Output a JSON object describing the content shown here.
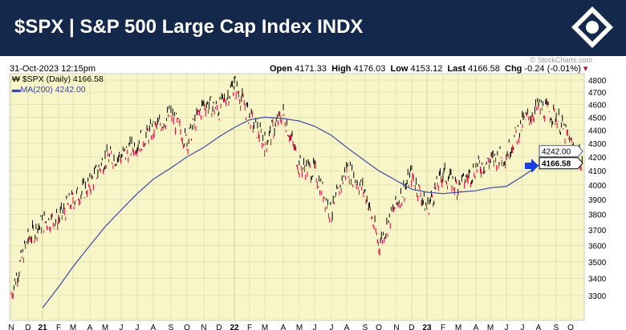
{
  "header": {
    "title": "$SPX | S&P 500 Large Cap Index INDX",
    "logo": "StockCharts"
  },
  "info": {
    "datetime": "31-Oct-2023 12:15pm",
    "watermark": "© StockCharts.com",
    "open_label": "Open",
    "open": "4171.33",
    "high_label": "High",
    "high": "4176.03",
    "low_label": "Low",
    "low": "4153.12",
    "last_label": "Last",
    "last": "4166.58",
    "chg_label": "Chg",
    "chg": "-0.24 (-0.01%)",
    "chg_icon": "down-triangle-icon"
  },
  "legend": {
    "price": "$SPX (Daily) 4166.58",
    "ma": "MA(200) 4242.00"
  },
  "chart_data": {
    "type": "line",
    "scale": "log",
    "grid": true,
    "ylim": [
      3200,
      4850
    ],
    "yticks": [
      4800,
      4700,
      4600,
      4500,
      4400,
      4300,
      4200,
      4100,
      4000,
      3900,
      3800,
      3700,
      3600,
      3500,
      3400,
      3300
    ],
    "xticks": [
      "N",
      "D",
      "21",
      "F",
      "M",
      "A",
      "M",
      "J",
      "J",
      "A",
      "S",
      "O",
      "N",
      "D",
      "22",
      "F",
      "M",
      "A",
      "M",
      "J",
      "J",
      "A",
      "S",
      "O",
      "N",
      "D",
      "23",
      "F",
      "M",
      "A",
      "M",
      "J",
      "J",
      "A",
      "S",
      "O"
    ],
    "price_label": "4166.58",
    "ma_label": "4242.00",
    "series": [
      {
        "name": "$SPX (Daily)",
        "color": "#000000",
        "down_color": "#e0003c",
        "values": [
          3310,
          3640,
          3750,
          3770,
          3900,
          4000,
          4190,
          4200,
          4300,
          4400,
          4520,
          4310,
          4610,
          4560,
          4770,
          4500,
          4300,
          4530,
          4130,
          4100,
          3800,
          4120,
          3950,
          3600,
          3870,
          4070,
          3840,
          4080,
          3980,
          4120,
          4170,
          4220,
          4450,
          4580,
          4510,
          4290,
          4166.58
        ]
      },
      {
        "name": "MA(200)",
        "color": "#4a55a8",
        "start_index": 2,
        "values": [
          3230,
          3350,
          3470,
          3600,
          3720,
          3830,
          3940,
          4040,
          4120,
          4200,
          4270,
          4350,
          4420,
          4480,
          4500,
          4490,
          4470,
          4430,
          4360,
          4270,
          4170,
          4100,
          4030,
          3970,
          3950,
          3940,
          3950,
          3960,
          3980,
          3990,
          4060,
          4140,
          4200,
          4242
        ]
      }
    ]
  },
  "colors": {
    "header_bg": "#13284b",
    "plot_bg": "#f8f6c8",
    "grid": "#d8d8a8",
    "arrow": "#1a3fe0"
  }
}
